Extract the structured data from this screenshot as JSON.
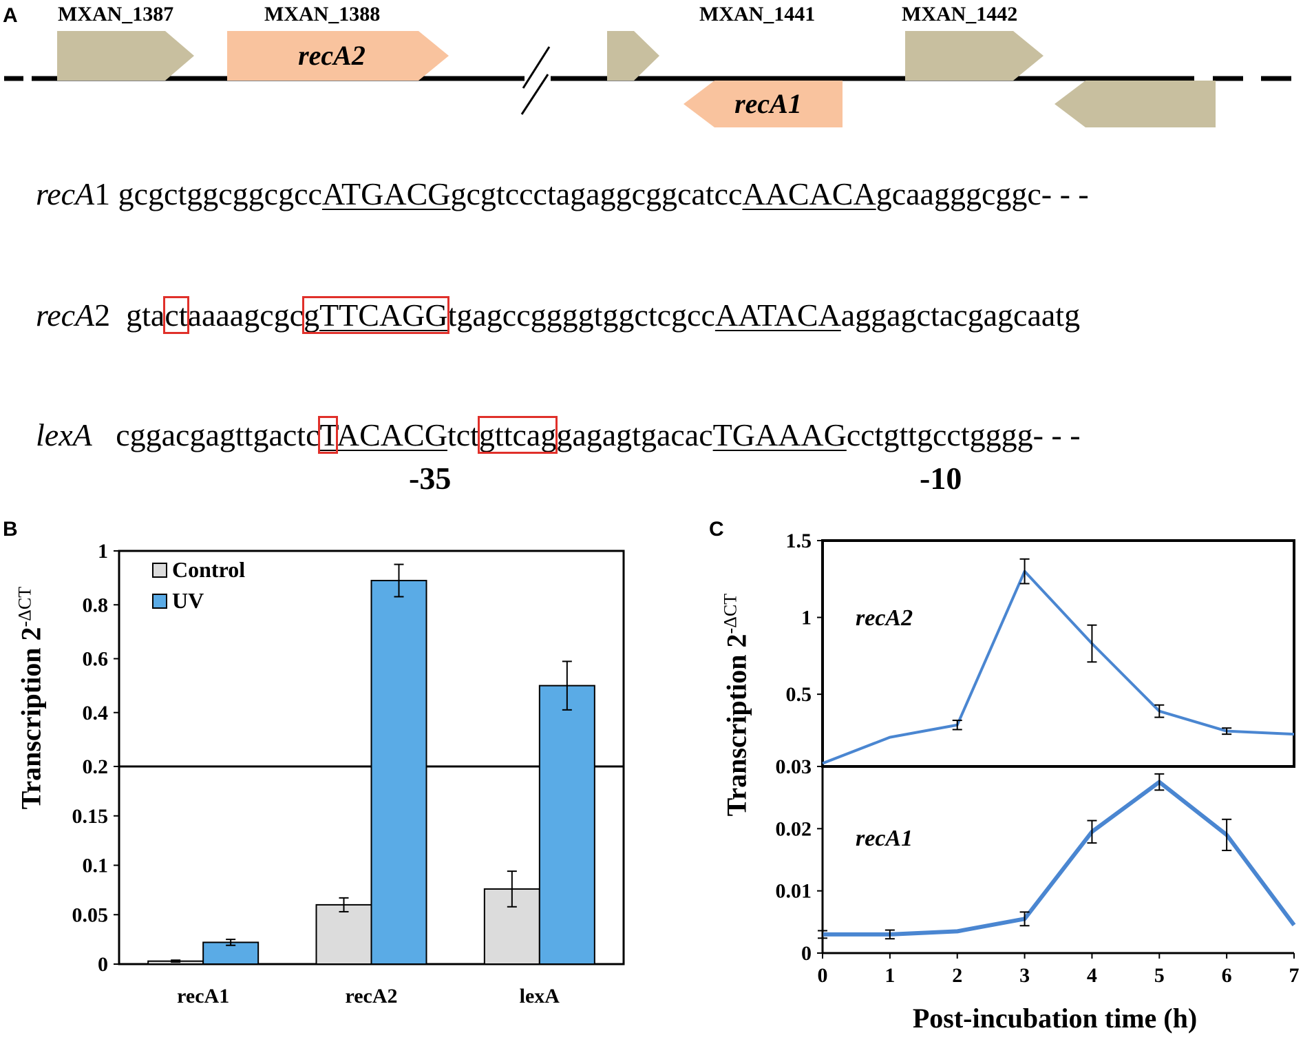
{
  "panels": {
    "a": "A",
    "b": "B",
    "c": "C"
  },
  "gene_map": {
    "labels": [
      "MXAN_1387",
      "MXAN_1388",
      "MXAN_1441",
      "MXAN_1442"
    ],
    "arrow_labels": {
      "recA2": "recA2",
      "recA1": "recA1"
    },
    "colors": {
      "gene": "#c8bf9f",
      "rec": "#f9c39e",
      "line": "#000000"
    }
  },
  "sequences": {
    "recA1": {
      "gene": "recA",
      "num": "1",
      "parts": [
        "gcgctggcggcgcc",
        "ATGACG",
        "gcgtccctagaggcggcatcc",
        "AACACA",
        "gcaagggcggc- - -"
      ]
    },
    "recA2": {
      "gene": "recA",
      "num": "2",
      "parts": [
        "gta",
        "ct",
        "aaaagcgc",
        "g",
        "TTCAGG",
        "tgagccggggtggctcgcc",
        "AATACA",
        "aggagctacgagcaatg"
      ]
    },
    "lexA": {
      "gene": "lexA",
      "parts": [
        "cggacgagttgact",
        "c",
        "T",
        "ACACG",
        "tct",
        "gttcag",
        "gagagtgacac",
        "TGAAAG",
        "cctgttgcctgggg- - -"
      ]
    },
    "minus35": "-35",
    "minus10": "-10"
  },
  "chart_data": [
    {
      "type": "bar",
      "panel": "B",
      "categories": [
        "recA1",
        "recA2",
        "lexA"
      ],
      "series": [
        {
          "name": "Control",
          "color": "#dcdcdc",
          "values": [
            0.003,
            0.06,
            0.076
          ],
          "errors": [
            0.001,
            0.007,
            0.018
          ]
        },
        {
          "name": "UV",
          "color": "#5aabe6",
          "values": [
            0.022,
            0.89,
            0.5
          ],
          "errors": [
            0.003,
            0.06,
            0.09
          ]
        }
      ],
      "ylabel": "Transcription 2",
      "ylabel_sup": "-ΔCT",
      "broken_axis": {
        "lower": {
          "ylim": [
            0,
            0.2
          ],
          "ticks": [
            "0",
            "0.05",
            "0.1",
            "0.15",
            "0.2"
          ],
          "tick_values": [
            0,
            0.05,
            0.1,
            0.15,
            0.2
          ]
        },
        "upper": {
          "ylim": [
            0.2,
            1
          ],
          "ticks": [
            "0.4",
            "0.6",
            "0.8",
            "1"
          ],
          "tick_values": [
            0.4,
            0.6,
            0.8,
            1
          ]
        }
      },
      "legend": "top-left"
    },
    {
      "type": "line",
      "panel": "C",
      "x": [
        0,
        1,
        2,
        3,
        4,
        5,
        6,
        7
      ],
      "xticks": [
        "0",
        "1",
        "2",
        "3",
        "4",
        "5",
        "6",
        "7"
      ],
      "xlabel": "Post-incubation  time (h)",
      "ylabel": "Transcription 2",
      "ylabel_sup": "-ΔCT",
      "series": [
        {
          "name": "recA2",
          "color": "#4a86d1",
          "values": [
            0.05,
            0.22,
            0.3,
            1.3,
            0.83,
            0.39,
            0.26,
            0.24
          ],
          "errors": [
            0,
            0,
            0.03,
            0.08,
            0.12,
            0.04,
            0.02,
            0
          ]
        },
        {
          "name": "recA1",
          "color": "#4a86d1",
          "values": [
            0.003,
            0.003,
            0.0035,
            0.0055,
            0.0195,
            0.0275,
            0.019,
            0.0045
          ],
          "errors": [
            0.0006,
            0.0007,
            0,
            0.0011,
            0.0018,
            0.0013,
            0.0025,
            0
          ]
        }
      ],
      "broken_axis": {
        "lower": {
          "ylim": [
            0,
            0.03
          ],
          "ticks": [
            "0",
            "0.01",
            "0.02",
            "0.03"
          ],
          "tick_values": [
            0,
            0.01,
            0.02,
            0.03
          ]
        },
        "upper": {
          "ylim": [
            0.03,
            1.5
          ],
          "ticks": [
            "0.5",
            "1",
            "1.5"
          ],
          "tick_values": [
            0.5,
            1,
            1.5
          ]
        }
      }
    }
  ]
}
